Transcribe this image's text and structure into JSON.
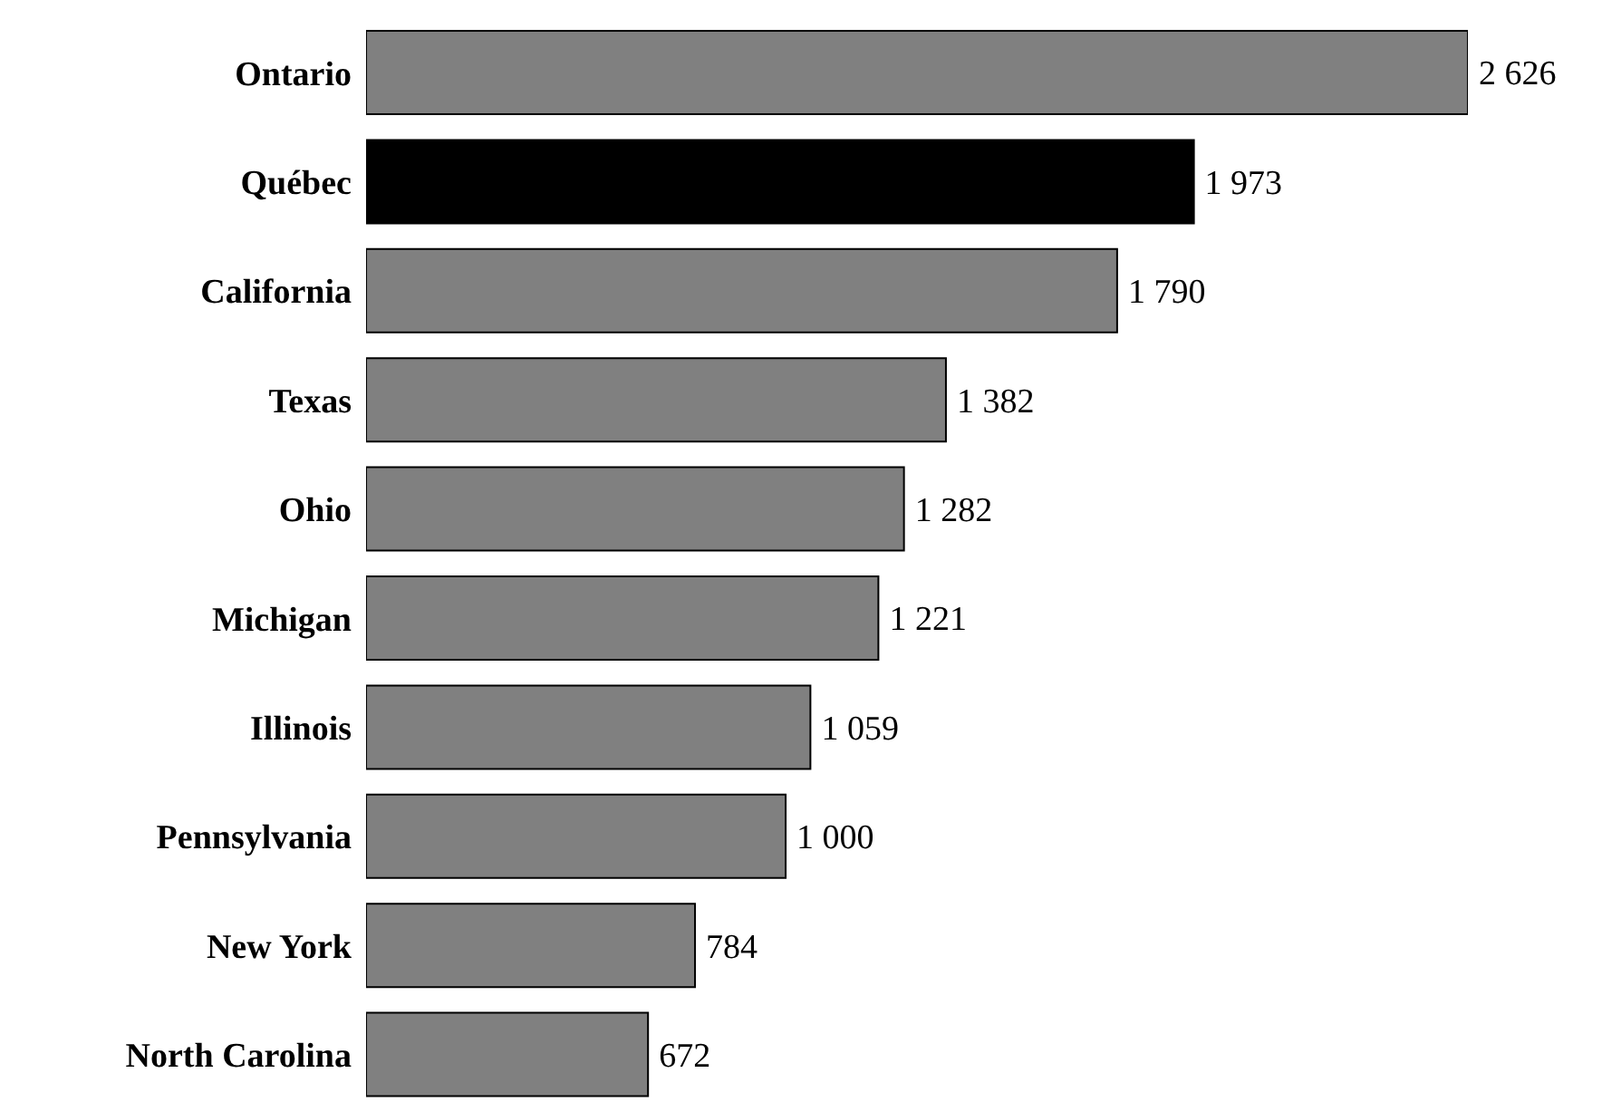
{
  "chart_data": {
    "type": "bar",
    "orientation": "horizontal",
    "categories": [
      "Ontario",
      "Québec",
      "California",
      "Texas",
      "Ohio",
      "Michigan",
      "Illinois",
      "Pennsylvania",
      "New York",
      "North Carolina"
    ],
    "values": [
      2626,
      1973,
      1790,
      1382,
      1282,
      1221,
      1059,
      1000,
      784,
      672
    ],
    "colors": [
      "#808080",
      "#000000",
      "#808080",
      "#808080",
      "#808080",
      "#808080",
      "#808080",
      "#808080",
      "#808080",
      "#808080"
    ],
    "value_labels": [
      "2 626",
      "1 973",
      "1 790",
      "1 382",
      "1 282",
      "1 221",
      "1 059",
      "1 000",
      "784",
      "672"
    ]
  }
}
